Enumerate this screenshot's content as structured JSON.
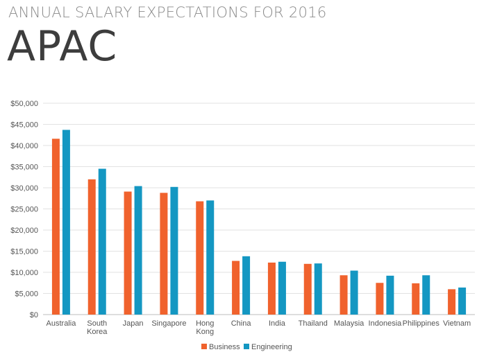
{
  "header": {
    "title": "ANNUAL SALARY EXPECTATIONS FOR 2016",
    "region": "APAC"
  },
  "colors": {
    "business": "#f0622d",
    "engineering": "#1497c2",
    "grid": "#e2e2e2",
    "axis": "#bdbdbd"
  },
  "chart_data": {
    "type": "bar",
    "title": "",
    "xlabel": "",
    "ylabel": "",
    "ylim": [
      0,
      50000
    ],
    "yticks": [
      0,
      5000,
      10000,
      15000,
      20000,
      25000,
      30000,
      35000,
      40000,
      45000,
      50000
    ],
    "ytick_labels": [
      "$0",
      "$5,000",
      "$10,000",
      "$15,000",
      "$20,000",
      "$25,000",
      "$30,000",
      "$35,000",
      "$40,000",
      "$45,000",
      "$50,000"
    ],
    "categories": [
      [
        "Australia"
      ],
      [
        "South",
        "Korea"
      ],
      [
        "Japan"
      ],
      [
        "Singapore"
      ],
      [
        "Hong",
        "Kong"
      ],
      [
        "China"
      ],
      [
        "India"
      ],
      [
        "Thailand"
      ],
      [
        "Malaysia"
      ],
      [
        "Indonesia"
      ],
      [
        "Philippines"
      ],
      [
        "Vietnam"
      ]
    ],
    "series": [
      {
        "name": "Business",
        "color": "#f0622d",
        "values": [
          41600,
          32000,
          29100,
          28800,
          26800,
          12700,
          12300,
          12000,
          9300,
          7500,
          7400,
          6000
        ]
      },
      {
        "name": "Engineering",
        "color": "#1497c2",
        "values": [
          43700,
          34500,
          30400,
          30200,
          27000,
          13800,
          12500,
          12100,
          10400,
          9200,
          9300,
          6400
        ]
      }
    ],
    "grid": true,
    "legend_position": "bottom-center"
  }
}
